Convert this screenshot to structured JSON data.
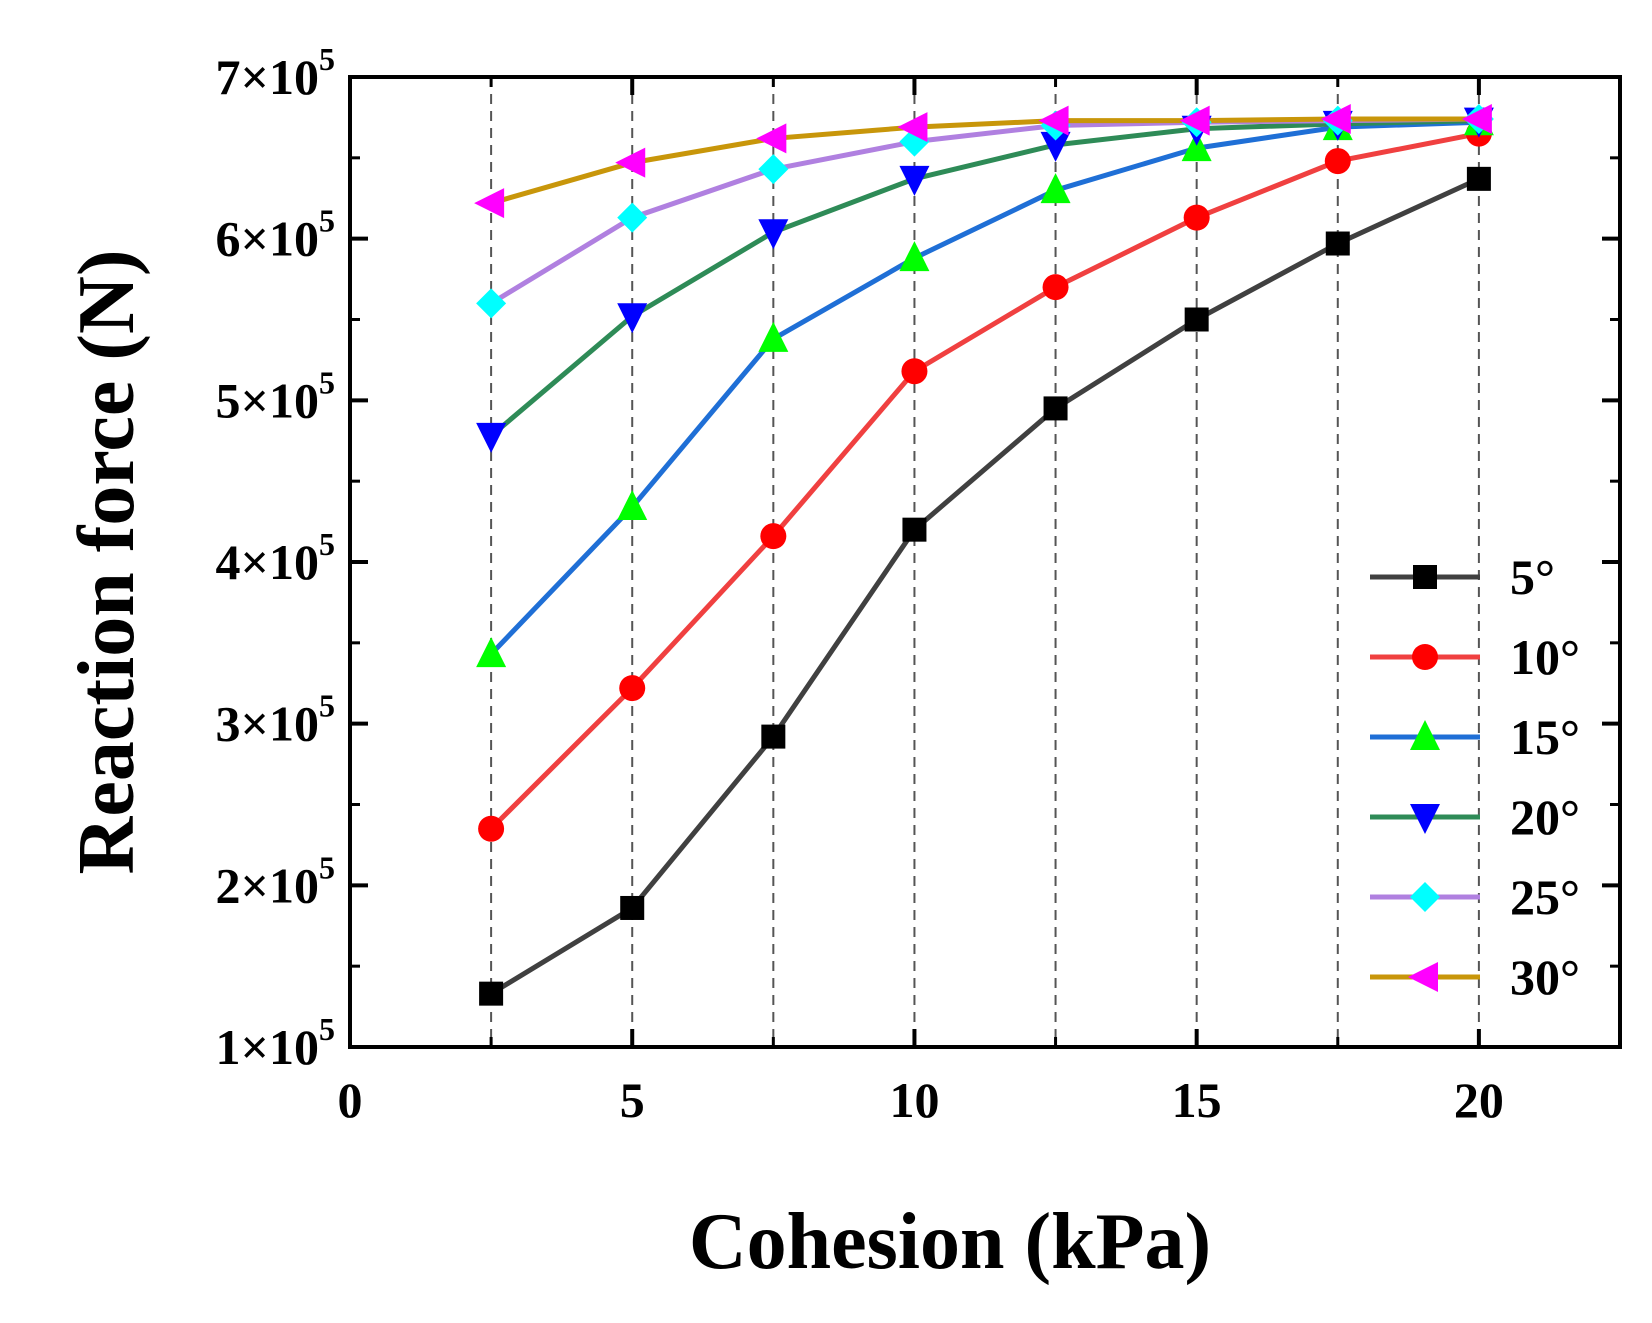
{
  "chart_data": {
    "type": "line",
    "title": "",
    "xlabel": "Cohesion (kPa)",
    "ylabel": "Reaction force (N)",
    "xlim": [
      0,
      22.5
    ],
    "ylim": [
      100000,
      700000
    ],
    "xticks": [
      0,
      5,
      10,
      15,
      20
    ],
    "yticks": [
      100000,
      200000,
      300000,
      400000,
      500000,
      600000,
      700000
    ],
    "yticks_labels": [
      {
        "mantissa": "1×10",
        "exp": "5"
      },
      {
        "mantissa": "2×10",
        "exp": "5"
      },
      {
        "mantissa": "3×10",
        "exp": "5"
      },
      {
        "mantissa": "4×10",
        "exp": "5"
      },
      {
        "mantissa": "5×10",
        "exp": "5"
      },
      {
        "mantissa": "6×10",
        "exp": "5"
      },
      {
        "mantissa": "7×10",
        "exp": "5"
      }
    ],
    "vertical_gridlines_x": [
      2.5,
      5,
      7.5,
      10,
      12.5,
      15,
      17.5,
      20
    ],
    "x": [
      2.5,
      5,
      7.5,
      10,
      12.5,
      15,
      17.5,
      20
    ],
    "legend_position": "bottom-right",
    "series": [
      {
        "name": "5°",
        "color": "#404040",
        "marker": "square",
        "marker_color": "#000000",
        "values": [
          133000,
          186000,
          292000,
          420000,
          495000,
          550000,
          597000,
          637000
        ]
      },
      {
        "name": "10°",
        "color": "#f04040",
        "marker": "circle",
        "marker_color": "#ff0000",
        "values": [
          235000,
          322000,
          416000,
          518000,
          570000,
          613000,
          648000,
          665000
        ]
      },
      {
        "name": "15°",
        "color": "#1f6fd6",
        "marker": "triangle-up",
        "marker_color": "#00ff00",
        "values": [
          343000,
          434000,
          538000,
          588000,
          630000,
          656000,
          669000,
          672000
        ]
      },
      {
        "name": "20°",
        "color": "#2e8b57",
        "marker": "triangle-down",
        "marker_color": "#0000ff",
        "values": [
          478000,
          552000,
          604000,
          637000,
          658000,
          668000,
          671000,
          673000
        ]
      },
      {
        "name": "25°",
        "color": "#b080e0",
        "marker": "diamond",
        "marker_color": "#00ffff",
        "values": [
          560000,
          613000,
          643000,
          660000,
          670000,
          672000,
          673000,
          674000
        ]
      },
      {
        "name": "30°",
        "color": "#c8960a",
        "marker": "triangle-left",
        "marker_color": "#ff00ff",
        "values": [
          622000,
          647000,
          662000,
          669000,
          673000,
          673000,
          674000,
          674000
        ]
      }
    ]
  }
}
